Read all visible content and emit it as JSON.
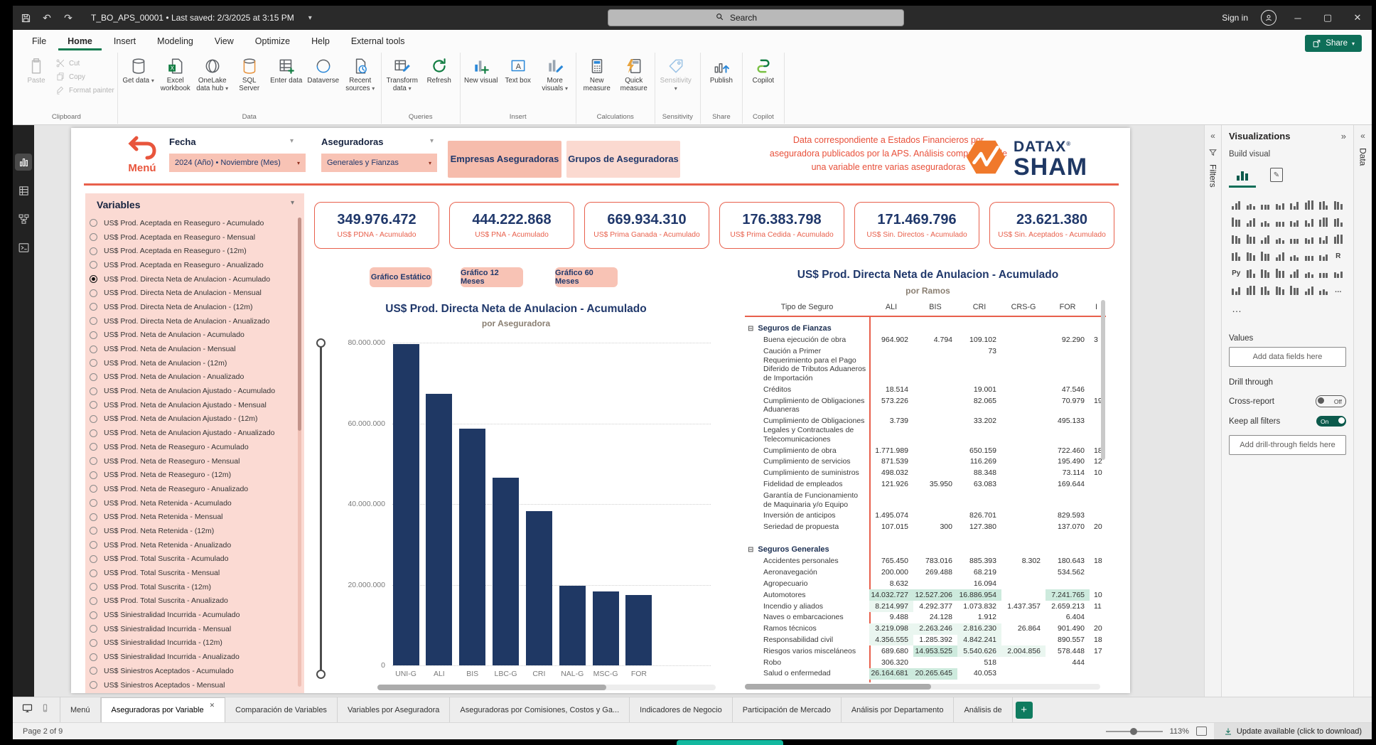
{
  "window": {
    "title": "T_BO_APS_00001 • Last saved: 2/3/2025 at 3:15 PM",
    "search_placeholder": "Search",
    "sign_in": "Sign in"
  },
  "ribbon": {
    "tabs": [
      "File",
      "Home",
      "Insert",
      "Modeling",
      "View",
      "Optimize",
      "Help",
      "External tools"
    ],
    "active_tab": "Home",
    "share_label": "Share",
    "groups": [
      {
        "label": "Clipboard",
        "big": [
          {
            "label": "Paste",
            "icon": "clipboard",
            "disabled": true
          }
        ],
        "stack": [
          {
            "label": "Cut",
            "icon": "scissors"
          },
          {
            "label": "Copy",
            "icon": "copy"
          },
          {
            "label": "Format painter",
            "icon": "brush"
          }
        ]
      },
      {
        "label": "Data",
        "big": [
          {
            "label": "Get data",
            "icon": "db",
            "caret": true
          },
          {
            "label": "Excel workbook",
            "icon": "excel"
          },
          {
            "label": "OneLake data hub",
            "icon": "onelake",
            "caret": true
          },
          {
            "label": "SQL Server",
            "icon": "sql"
          },
          {
            "label": "Enter data",
            "icon": "entergrid"
          },
          {
            "label": "Dataverse",
            "icon": "dataverse"
          },
          {
            "label": "Recent sources",
            "icon": "recent",
            "caret": true
          }
        ]
      },
      {
        "label": "Queries",
        "big": [
          {
            "label": "Transform data",
            "icon": "transform",
            "caret": true
          },
          {
            "label": "Refresh",
            "icon": "refresh"
          }
        ]
      },
      {
        "label": "Insert",
        "big": [
          {
            "label": "New visual",
            "icon": "newvisual"
          },
          {
            "label": "Text box",
            "icon": "textbox"
          },
          {
            "label": "More visuals",
            "icon": "morevisuals",
            "caret": true
          }
        ]
      },
      {
        "label": "Calculations",
        "big": [
          {
            "label": "New measure",
            "icon": "calc"
          },
          {
            "label": "Quick measure",
            "icon": "quickcalc"
          }
        ]
      },
      {
        "label": "Sensitivity",
        "big": [
          {
            "label": "Sensitivity",
            "icon": "tag",
            "disabled": true,
            "caret": true
          }
        ]
      },
      {
        "label": "Share",
        "big": [
          {
            "label": "Publish",
            "icon": "publish"
          }
        ]
      },
      {
        "label": "Copilot",
        "big": [
          {
            "label": "Copilot",
            "icon": "copilot"
          }
        ]
      }
    ]
  },
  "dock": {
    "items": [
      {
        "name": "report-view",
        "active": true
      },
      {
        "name": "table-view",
        "active": false
      },
      {
        "name": "model-view",
        "active": false
      },
      {
        "name": "dax-query-view",
        "active": false
      }
    ]
  },
  "report": {
    "menu_label": "Menú",
    "filters": [
      {
        "label": "Fecha",
        "value": "2024 (Año) • Noviembre (Mes)"
      },
      {
        "label": "Aseguradoras",
        "value": "Generales y Fianzas"
      }
    ],
    "view_buttons": [
      {
        "label": "Empresas Aseguradoras",
        "active": true
      },
      {
        "label": "Grupos de Aseguradoras",
        "active": false
      }
    ],
    "note": "Data correspondiente a Estados Financieros por aseguradora publicados por la APS. Análisis comparativo de una variable entre varias aseguradoras",
    "logo": {
      "brand": "DATAX",
      "reg": "®",
      "sub": "SHAM"
    },
    "variables": {
      "title": "Variables",
      "selected_index": 4,
      "items": [
        "US$ Prod. Aceptada en Reaseguro - Acumulado",
        "US$ Prod. Aceptada en Reaseguro - Mensual",
        "US$ Prod. Aceptada en Reaseguro - (12m)",
        "US$ Prod. Aceptada en Reaseguro - Anualizado",
        "US$ Prod. Directa Neta de Anulacion - Acumulado",
        "US$ Prod. Directa Neta de Anulacion - Mensual",
        "US$ Prod. Directa Neta de Anulacion - (12m)",
        "US$ Prod. Directa Neta de Anulacion - Anualizado",
        "US$ Prod. Neta de Anulacion - Acumulado",
        "US$ Prod. Neta de Anulacion - Mensual",
        "US$ Prod. Neta de Anulacion - (12m)",
        "US$ Prod. Neta de Anulacion - Anualizado",
        "US$ Prod. Neta de Anulacion Ajustado - Acumulado",
        "US$ Prod. Neta de Anulacion Ajustado - Mensual",
        "US$ Prod. Neta de Anulacion Ajustado - (12m)",
        "US$ Prod. Neta de Anulacion Ajustado - Anualizado",
        "US$ Prod. Neta de Reaseguro - Acumulado",
        "US$ Prod. Neta de Reaseguro - Mensual",
        "US$ Prod. Neta de Reaseguro - (12m)",
        "US$ Prod. Neta de Reaseguro - Anualizado",
        "US$ Prod. Neta Retenida - Acumulado",
        "US$ Prod. Neta Retenida - Mensual",
        "US$ Prod. Neta Retenida - (12m)",
        "US$ Prod. Neta Retenida - Anualizado",
        "US$ Prod. Total Suscrita - Acumulado",
        "US$ Prod. Total Suscrita - Mensual",
        "US$ Prod. Total Suscrita - (12m)",
        "US$ Prod. Total Suscrita - Anualizado",
        "US$ Siniestralidad Incurrida - Acumulado",
        "US$ Siniestralidad Incurrida - Mensual",
        "US$ Siniestralidad Incurrida - (12m)",
        "US$ Siniestralidad Incurrida - Anualizado",
        "US$ Siniestros Aceptados - Acumulado",
        "US$ Siniestros Aceptados - Mensual"
      ]
    },
    "kpis": [
      {
        "value": "349.976.472",
        "label": "US$ PDNA - Acumulado"
      },
      {
        "value": "444.222.868",
        "label": "US$ PNA - Acumulado"
      },
      {
        "value": "669.934.310",
        "label": "US$ Prima Ganada - Acumulado"
      },
      {
        "value": "176.383.798",
        "label": "US$ Prima Cedida - Acumulado"
      },
      {
        "value": "171.469.796",
        "label": "US$ Sin. Directos - Acumulado"
      },
      {
        "value": "23.621.380",
        "label": "US$ Sin. Aceptados - Acumulado"
      }
    ],
    "chart_buttons": [
      "Gráfico Estático",
      "Gráfico 12 Meses",
      "Gráfico 60 Meses"
    ],
    "table": {
      "title": "US$ Prod. Directa Neta de Anulacion - Acumulado",
      "subtitle": "por Ramos",
      "columns": [
        "Tipo de Seguro",
        "ALI",
        "BIS",
        "CRI",
        "CRS-G",
        "FOR",
        "I"
      ],
      "groups": [
        {
          "name": "Seguros de Fianzas",
          "rows": [
            {
              "name": "Buena ejecución de obra",
              "values": [
                "964.902",
                "4.794",
                "109.102",
                "",
                "92.290"
              ],
              "extra": "3"
            },
            {
              "name": "Caución a Primer Requerimiento para el Pago Diferido de Tributos Aduaneros de Importación",
              "values": [
                "",
                "",
                "73",
                "",
                ""
              ],
              "extra": ""
            },
            {
              "name": "Créditos",
              "values": [
                "18.514",
                "",
                "19.001",
                "",
                "47.546"
              ],
              "extra": ""
            },
            {
              "name": "Cumplimiento de Obligaciones Aduaneras",
              "values": [
                "573.226",
                "",
                "82.065",
                "",
                "70.979"
              ],
              "extra": "19"
            },
            {
              "name": "Cumplimiento de Obligaciones Legales y Contractuales de Telecomunicaciones",
              "values": [
                "3.739",
                "",
                "33.202",
                "",
                "495.133"
              ],
              "extra": ""
            },
            {
              "name": "Cumplimiento de obra",
              "values": [
                "1.771.989",
                "",
                "650.159",
                "",
                "722.460"
              ],
              "extra": "18"
            },
            {
              "name": "Cumplimiento de servicios",
              "values": [
                "871.539",
                "",
                "116.269",
                "",
                "195.490"
              ],
              "extra": "12"
            },
            {
              "name": "Cumplimiento de suministros",
              "values": [
                "498.032",
                "",
                "88.348",
                "",
                "73.114"
              ],
              "extra": "10"
            },
            {
              "name": "Fidelidad de empleados",
              "values": [
                "121.926",
                "35.950",
                "63.083",
                "",
                "169.644"
              ],
              "extra": ""
            },
            {
              "name": "Garantía de Funcionamiento de Maquinaria y/o Equipo",
              "values": [
                "",
                "",
                "",
                "",
                ""
              ],
              "extra": ""
            },
            {
              "name": "Inversión de anticipos",
              "values": [
                "1.495.074",
                "",
                "826.701",
                "",
                "829.593"
              ],
              "extra": ""
            },
            {
              "name": "Seriedad de propuesta",
              "values": [
                "107.015",
                "300",
                "127.380",
                "",
                "137.070"
              ],
              "extra": "20"
            }
          ]
        },
        {
          "name": "Seguros Generales",
          "rows": [
            {
              "name": "Accidentes personales",
              "values": [
                "765.450",
                "783.016",
                "885.393",
                "8.302",
                "180.643"
              ],
              "extra": "18"
            },
            {
              "name": "Aeronavegación",
              "values": [
                "200.000",
                "269.488",
                "68.219",
                "",
                "534.562"
              ],
              "extra": ""
            },
            {
              "name": "Agropecuario",
              "values": [
                "8.632",
                "",
                "16.094",
                "",
                ""
              ],
              "extra": ""
            },
            {
              "name": "Automotores",
              "values": [
                "14.032.727",
                "12.527.206",
                "16.886.954",
                "",
                "7.241.765"
              ],
              "extra": "10",
              "hl": [
                2,
                2,
                2,
                0,
                2
              ]
            },
            {
              "name": "Incendio y aliados",
              "values": [
                "8.214.997",
                "4.292.377",
                "1.073.832",
                "1.437.357",
                "2.659.213"
              ],
              "extra": "11",
              "hl": [
                1,
                0,
                0,
                0,
                0
              ]
            },
            {
              "name": "Naves o embarcaciones",
              "values": [
                "9.488",
                "24.128",
                "1.912",
                "",
                "6.404"
              ],
              "extra": ""
            },
            {
              "name": "Ramos técnicos",
              "values": [
                "3.219.098",
                "2.263.246",
                "2.816.230",
                "26.864",
                "901.490"
              ],
              "extra": "20",
              "hl": [
                1,
                1,
                1,
                0,
                0
              ]
            },
            {
              "name": "Responsabilidad civil",
              "values": [
                "4.356.555",
                "1.285.392",
                "4.842.241",
                "",
                "890.557"
              ],
              "extra": "18",
              "hl": [
                1,
                0,
                1,
                0,
                0
              ]
            },
            {
              "name": "Riesgos varios misceláneos",
              "values": [
                "689.680",
                "14.953.525",
                "5.540.626",
                "2.004.856",
                "578.448"
              ],
              "extra": "17",
              "hl": [
                0,
                2,
                1,
                1,
                0
              ]
            },
            {
              "name": "Robo",
              "values": [
                "306.320",
                "",
                "518",
                "",
                "444"
              ],
              "extra": ""
            },
            {
              "name": "Salud o enfermedad",
              "values": [
                "26.164.681",
                "20.265.645",
                "40.053",
                "",
                ""
              ],
              "extra": "",
              "hl": [
                2,
                2,
                0,
                0,
                0
              ]
            }
          ]
        }
      ]
    }
  },
  "chart_data": {
    "type": "bar",
    "title": "US$ Prod. Directa Neta de Anulacion - Acumulado",
    "subtitle": "por Aseguradora",
    "categories": [
      "UNI-G",
      "ALI",
      "BIS",
      "LBC-G",
      "CRI",
      "NAL-G",
      "MSC-G",
      "FOR"
    ],
    "values": [
      79600000,
      67400000,
      58600000,
      46500000,
      38300000,
      19800000,
      18400000,
      17400000
    ],
    "xlabel": "Aseguradora",
    "ylabel": "",
    "ylim": [
      0,
      80000000
    ],
    "yticks": [
      "80.000.000",
      "60.000.000",
      "40.000.000",
      "20.000.000",
      "0"
    ],
    "grid": "dotted horizontal",
    "bar_color": "#1f3864"
  },
  "panels": {
    "filters_label": "Filters",
    "data_label": "Data",
    "visualizations": {
      "title": "Visualizations",
      "build_visual": "Build visual",
      "icons": [
        "stacked-bar-chart",
        "stacked-column-chart",
        "clustered-bar-chart",
        "clustered-column-chart",
        "100-stacked-bar-chart",
        "100-stacked-column-chart",
        "line-chart",
        "area-chart",
        "stacked-area-chart",
        "line-and-stacked-column-chart",
        "line-and-clustered-column-chart",
        "ribbon-chart",
        "waterfall-chart",
        "funnel-chart",
        "scatter-chart",
        "pie-chart",
        "donut-chart",
        "treemap",
        "map",
        "filled-map",
        "shape-map",
        "azure-map",
        "gauge",
        "card",
        "new-card",
        "multi-row-card",
        "kpi",
        "slicer",
        "new-slicer",
        "table",
        "matrix",
        "r-script-visual",
        "python-visual",
        "key-influencers",
        "decomposition-tree",
        "q-and-a",
        "smart-narrative",
        "metrics",
        "paginated-report",
        "arcgis-map",
        "power-apps",
        "power-automate",
        "scorecard",
        "custom-visual-1",
        "custom-visual-2",
        "custom-visual-3",
        "custom-visual-4",
        "get-more-visuals"
      ],
      "icon_glyphs": {
        "31": "R",
        "32": "Py",
        "47": "…"
      },
      "more": "…",
      "values_label": "Values",
      "values_placeholder": "Add data fields here",
      "drill_label": "Drill through",
      "cross_report": "Cross-report",
      "cross_report_state": "Off",
      "keep_filters": "Keep all filters",
      "keep_filters_state": "On",
      "drill_placeholder": "Add drill-through fields here"
    }
  },
  "tabs": {
    "pages": [
      {
        "label": "Menú"
      },
      {
        "label": "Aseguradoras por Variable",
        "active": true,
        "closable": true
      },
      {
        "label": "Comparación de Variables"
      },
      {
        "label": "Variables por Aseguradora"
      },
      {
        "label": "Aseguradoras por Comisiones, Costos y Ga..."
      },
      {
        "label": "Indicadores de Negocio"
      },
      {
        "label": "Participación de Mercado"
      },
      {
        "label": "Análisis por Departamento"
      },
      {
        "label": "Análisis de",
        "cut": true
      }
    ]
  },
  "status": {
    "page": "Page 2 of 9",
    "zoom": "113%",
    "update": "Update available (click to download)"
  }
}
